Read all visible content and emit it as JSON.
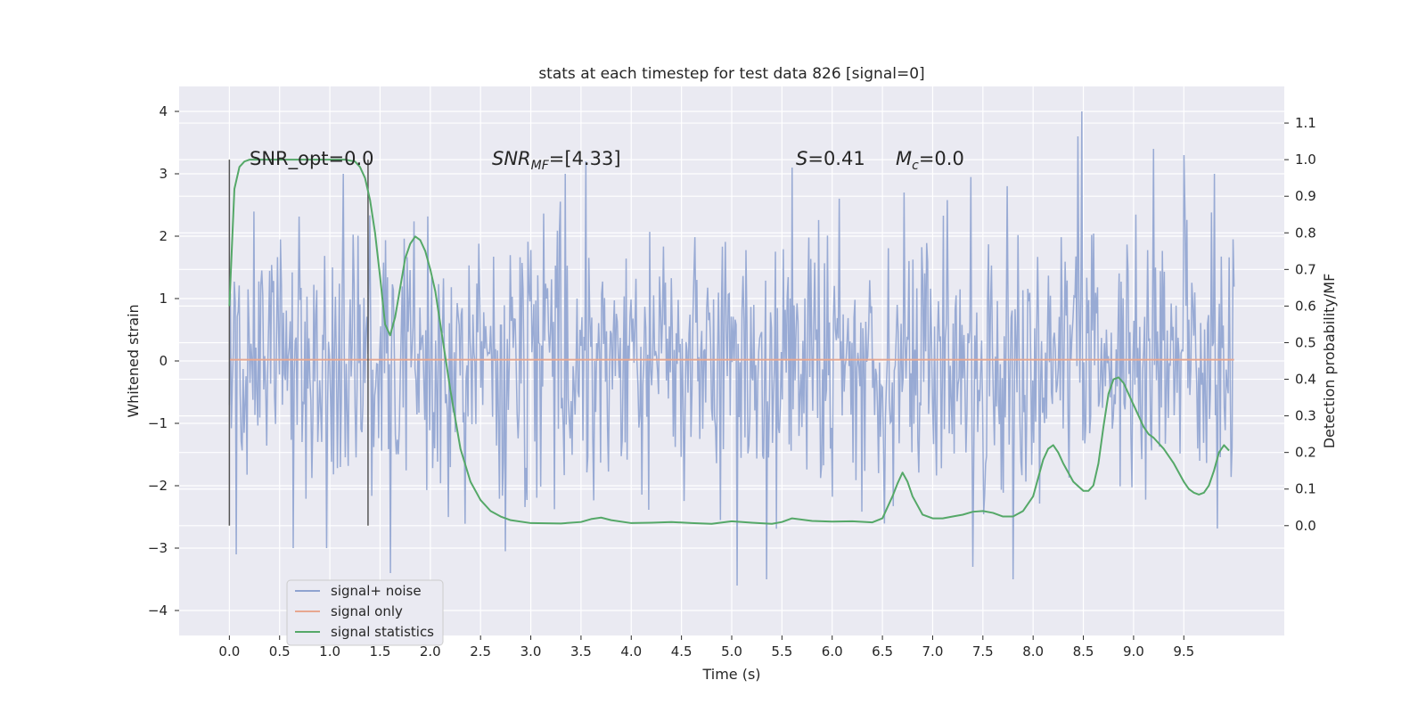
{
  "chart_data": {
    "type": "line",
    "title": "stats at each timestep for test data 826 [signal=0]",
    "xlabel": "Time (s)",
    "ylabel": "Whitened strain",
    "ylabel_right": "Detection probability/MF",
    "xlim": [
      -0.5,
      10.5
    ],
    "ylim": [
      -4.4,
      4.4
    ],
    "ylim_right": [
      -0.3,
      1.2
    ],
    "xticks": [
      0.0,
      0.5,
      1.0,
      1.5,
      2.0,
      2.5,
      3.0,
      3.5,
      4.0,
      4.5,
      5.0,
      5.5,
      6.0,
      6.5,
      7.0,
      7.5,
      8.0,
      8.5,
      9.0,
      9.5
    ],
    "xtick_labels": [
      "0.0",
      "0.5",
      "1.0",
      "1.5",
      "2.0",
      "2.5",
      "3.0",
      "3.5",
      "4.0",
      "4.5",
      "5.0",
      "5.5",
      "6.0",
      "6.5",
      "7.0",
      "7.5",
      "8.0",
      "8.5",
      "9.0",
      "9.5"
    ],
    "yticks": [
      4,
      3,
      2,
      1,
      0,
      -1,
      -2,
      -3,
      -4
    ],
    "ytick_labels": [
      "4",
      "3",
      "2",
      "1",
      "0",
      "−1",
      "−2",
      "−3",
      "−4"
    ],
    "yticks_right": [
      1.1,
      1.0,
      0.9,
      0.8,
      0.7,
      0.6,
      0.5,
      0.4,
      0.3,
      0.2,
      0.1,
      0.0
    ],
    "ytick_labels_right": [
      "1.1",
      "1.0",
      "0.9",
      "0.8",
      "0.7",
      "0.6",
      "0.5",
      "0.4",
      "0.3",
      "0.2",
      "0.1",
      "0.0"
    ],
    "grid": true,
    "legend_position": "lower-left",
    "legend": [
      {
        "label": "signal+ noise",
        "color": "#8fa3d0"
      },
      {
        "label": "signal only",
        "color": "#e7a790"
      },
      {
        "label": "signal statistics",
        "color": "#55a868"
      }
    ],
    "annotations": {
      "snr_opt": "SNR_opt=0.0",
      "snr_mf_italic": "SNR",
      "snr_mf_sub": "MF",
      "snr_mf_value": "=[4.33]",
      "s_italic": "S",
      "s_value": "=0.41",
      "mc_italic": "M",
      "mc_sub": "c",
      "mc_value": "=0.0"
    },
    "vertical_markers": [
      0.0,
      1.38
    ],
    "noise": {
      "name": "signal+ noise",
      "t_start": 0.0,
      "t_end": 10.0,
      "samples": 1024,
      "std": 1.0,
      "peaks": [
        {
          "t": 8.48,
          "v": 4.0
        },
        {
          "t": 8.45,
          "v": 3.6
        },
        {
          "t": 9.2,
          "v": 3.4
        },
        {
          "t": 3.55,
          "v": 3.2
        },
        {
          "t": 3.34,
          "v": 3.0
        },
        {
          "t": 9.5,
          "v": 3.3
        },
        {
          "t": 5.6,
          "v": 3.1
        },
        {
          "t": 6.72,
          "v": 2.7
        },
        {
          "t": 1.6,
          "v": -3.4
        },
        {
          "t": 5.05,
          "v": -3.6
        },
        {
          "t": 5.35,
          "v": -3.5
        },
        {
          "t": 7.8,
          "v": -3.5
        },
        {
          "t": 0.07,
          "v": -3.1
        },
        {
          "t": 2.75,
          "v": -3.05
        },
        {
          "t": 7.4,
          "v": -3.3
        }
      ]
    },
    "signal_only": {
      "name": "signal only",
      "t": [
        0.0,
        10.0
      ],
      "values": [
        0.02,
        0.02
      ]
    },
    "statistics": {
      "name": "signal statistics",
      "t": [
        0.0,
        0.05,
        0.1,
        0.15,
        0.2,
        0.3,
        0.5,
        0.8,
        1.0,
        1.15,
        1.25,
        1.3,
        1.35,
        1.4,
        1.45,
        1.5,
        1.55,
        1.6,
        1.65,
        1.7,
        1.75,
        1.8,
        1.85,
        1.9,
        1.95,
        2.0,
        2.05,
        2.1,
        2.15,
        2.2,
        2.25,
        2.3,
        2.4,
        2.5,
        2.6,
        2.7,
        2.8,
        3.0,
        3.3,
        3.5,
        3.6,
        3.7,
        3.8,
        4.0,
        4.2,
        4.4,
        4.6,
        4.8,
        5.0,
        5.2,
        5.4,
        5.5,
        5.6,
        5.8,
        6.0,
        6.2,
        6.4,
        6.5,
        6.6,
        6.65,
        6.7,
        6.75,
        6.8,
        6.9,
        7.0,
        7.1,
        7.2,
        7.3,
        7.4,
        7.5,
        7.6,
        7.7,
        7.8,
        7.9,
        8.0,
        8.05,
        8.1,
        8.15,
        8.2,
        8.25,
        8.3,
        8.4,
        8.5,
        8.55,
        8.6,
        8.65,
        8.7,
        8.75,
        8.8,
        8.85,
        8.9,
        8.95,
        9.0,
        9.05,
        9.1,
        9.15,
        9.2,
        9.3,
        9.4,
        9.5,
        9.55,
        9.6,
        9.65,
        9.7,
        9.75,
        9.8,
        9.85,
        9.9,
        9.95
      ],
      "values": [
        0.6,
        0.92,
        0.98,
        0.995,
        1.0,
        1.0,
        1.0,
        1.0,
        1.0,
        1.0,
        0.995,
        0.98,
        0.95,
        0.89,
        0.8,
        0.68,
        0.55,
        0.52,
        0.57,
        0.65,
        0.73,
        0.77,
        0.79,
        0.78,
        0.75,
        0.7,
        0.64,
        0.55,
        0.46,
        0.37,
        0.29,
        0.21,
        0.12,
        0.07,
        0.04,
        0.025,
        0.015,
        0.007,
        0.006,
        0.01,
        0.018,
        0.022,
        0.015,
        0.007,
        0.008,
        0.01,
        0.007,
        0.005,
        0.012,
        0.008,
        0.005,
        0.01,
        0.02,
        0.013,
        0.011,
        0.012,
        0.009,
        0.02,
        0.08,
        0.115,
        0.145,
        0.12,
        0.08,
        0.03,
        0.02,
        0.02,
        0.025,
        0.03,
        0.038,
        0.04,
        0.035,
        0.025,
        0.025,
        0.04,
        0.08,
        0.13,
        0.18,
        0.21,
        0.22,
        0.2,
        0.17,
        0.12,
        0.095,
        0.095,
        0.11,
        0.17,
        0.27,
        0.36,
        0.4,
        0.405,
        0.39,
        0.36,
        0.33,
        0.3,
        0.27,
        0.25,
        0.24,
        0.21,
        0.17,
        0.12,
        0.1,
        0.09,
        0.085,
        0.09,
        0.11,
        0.15,
        0.2,
        0.22,
        0.205
      ]
    }
  }
}
